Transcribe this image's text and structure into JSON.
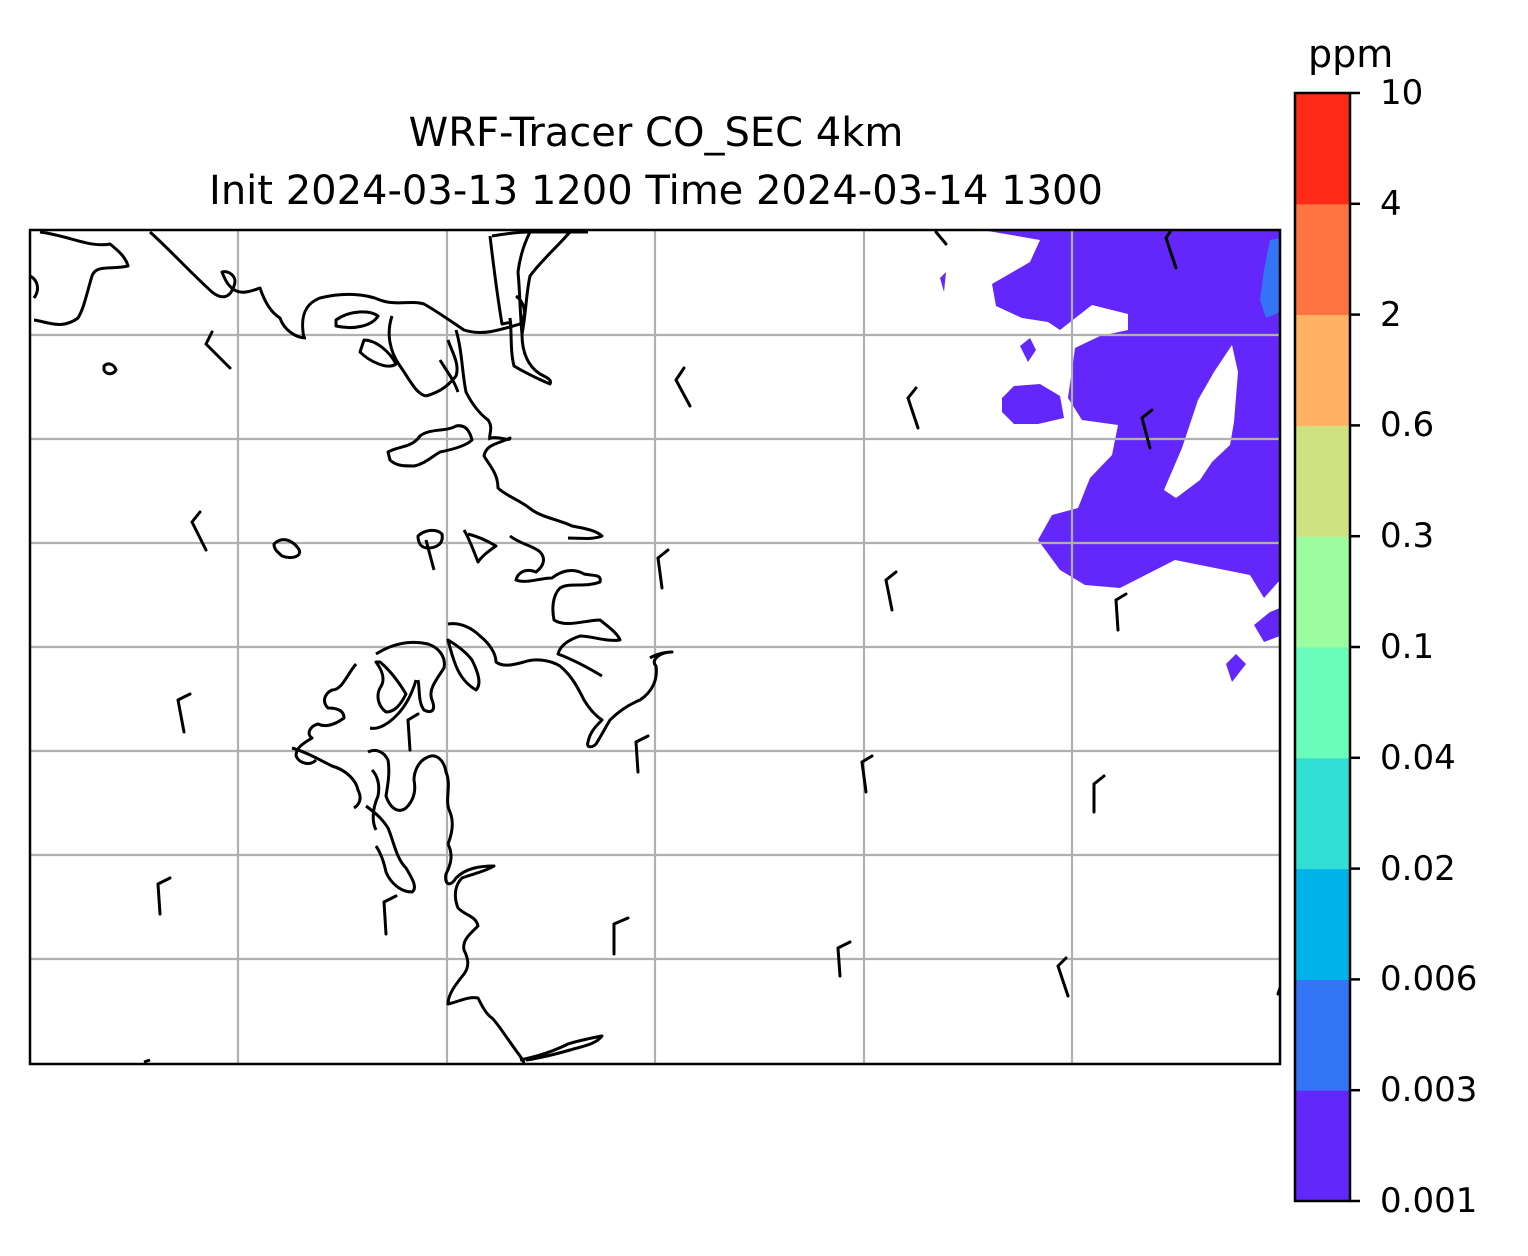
{
  "title": "WRF-Tracer CO_SEC 4km",
  "subtitle": "Init 2024-03-13 1200 Time 2024-03-14 1300",
  "colorbar": {
    "unit": "ppm",
    "levels": [
      "0.001",
      "0.003",
      "0.006",
      "0.02",
      "0.04",
      "0.1",
      "0.3",
      "0.6",
      "2",
      "4",
      "10"
    ],
    "colors": [
      "#6327fb",
      "#3474f6",
      "#00b4ea",
      "#32dfd5",
      "#6afcbb",
      "#9bfd9f",
      "#cfe27f",
      "#ffb263",
      "#ff7440",
      "#ff2a18"
    ]
  },
  "map": {
    "field": "CO_SEC tracer concentration",
    "coastline_color": "#000000",
    "gridline_color": "#b0b0b0",
    "wind_barbs": "present"
  }
}
